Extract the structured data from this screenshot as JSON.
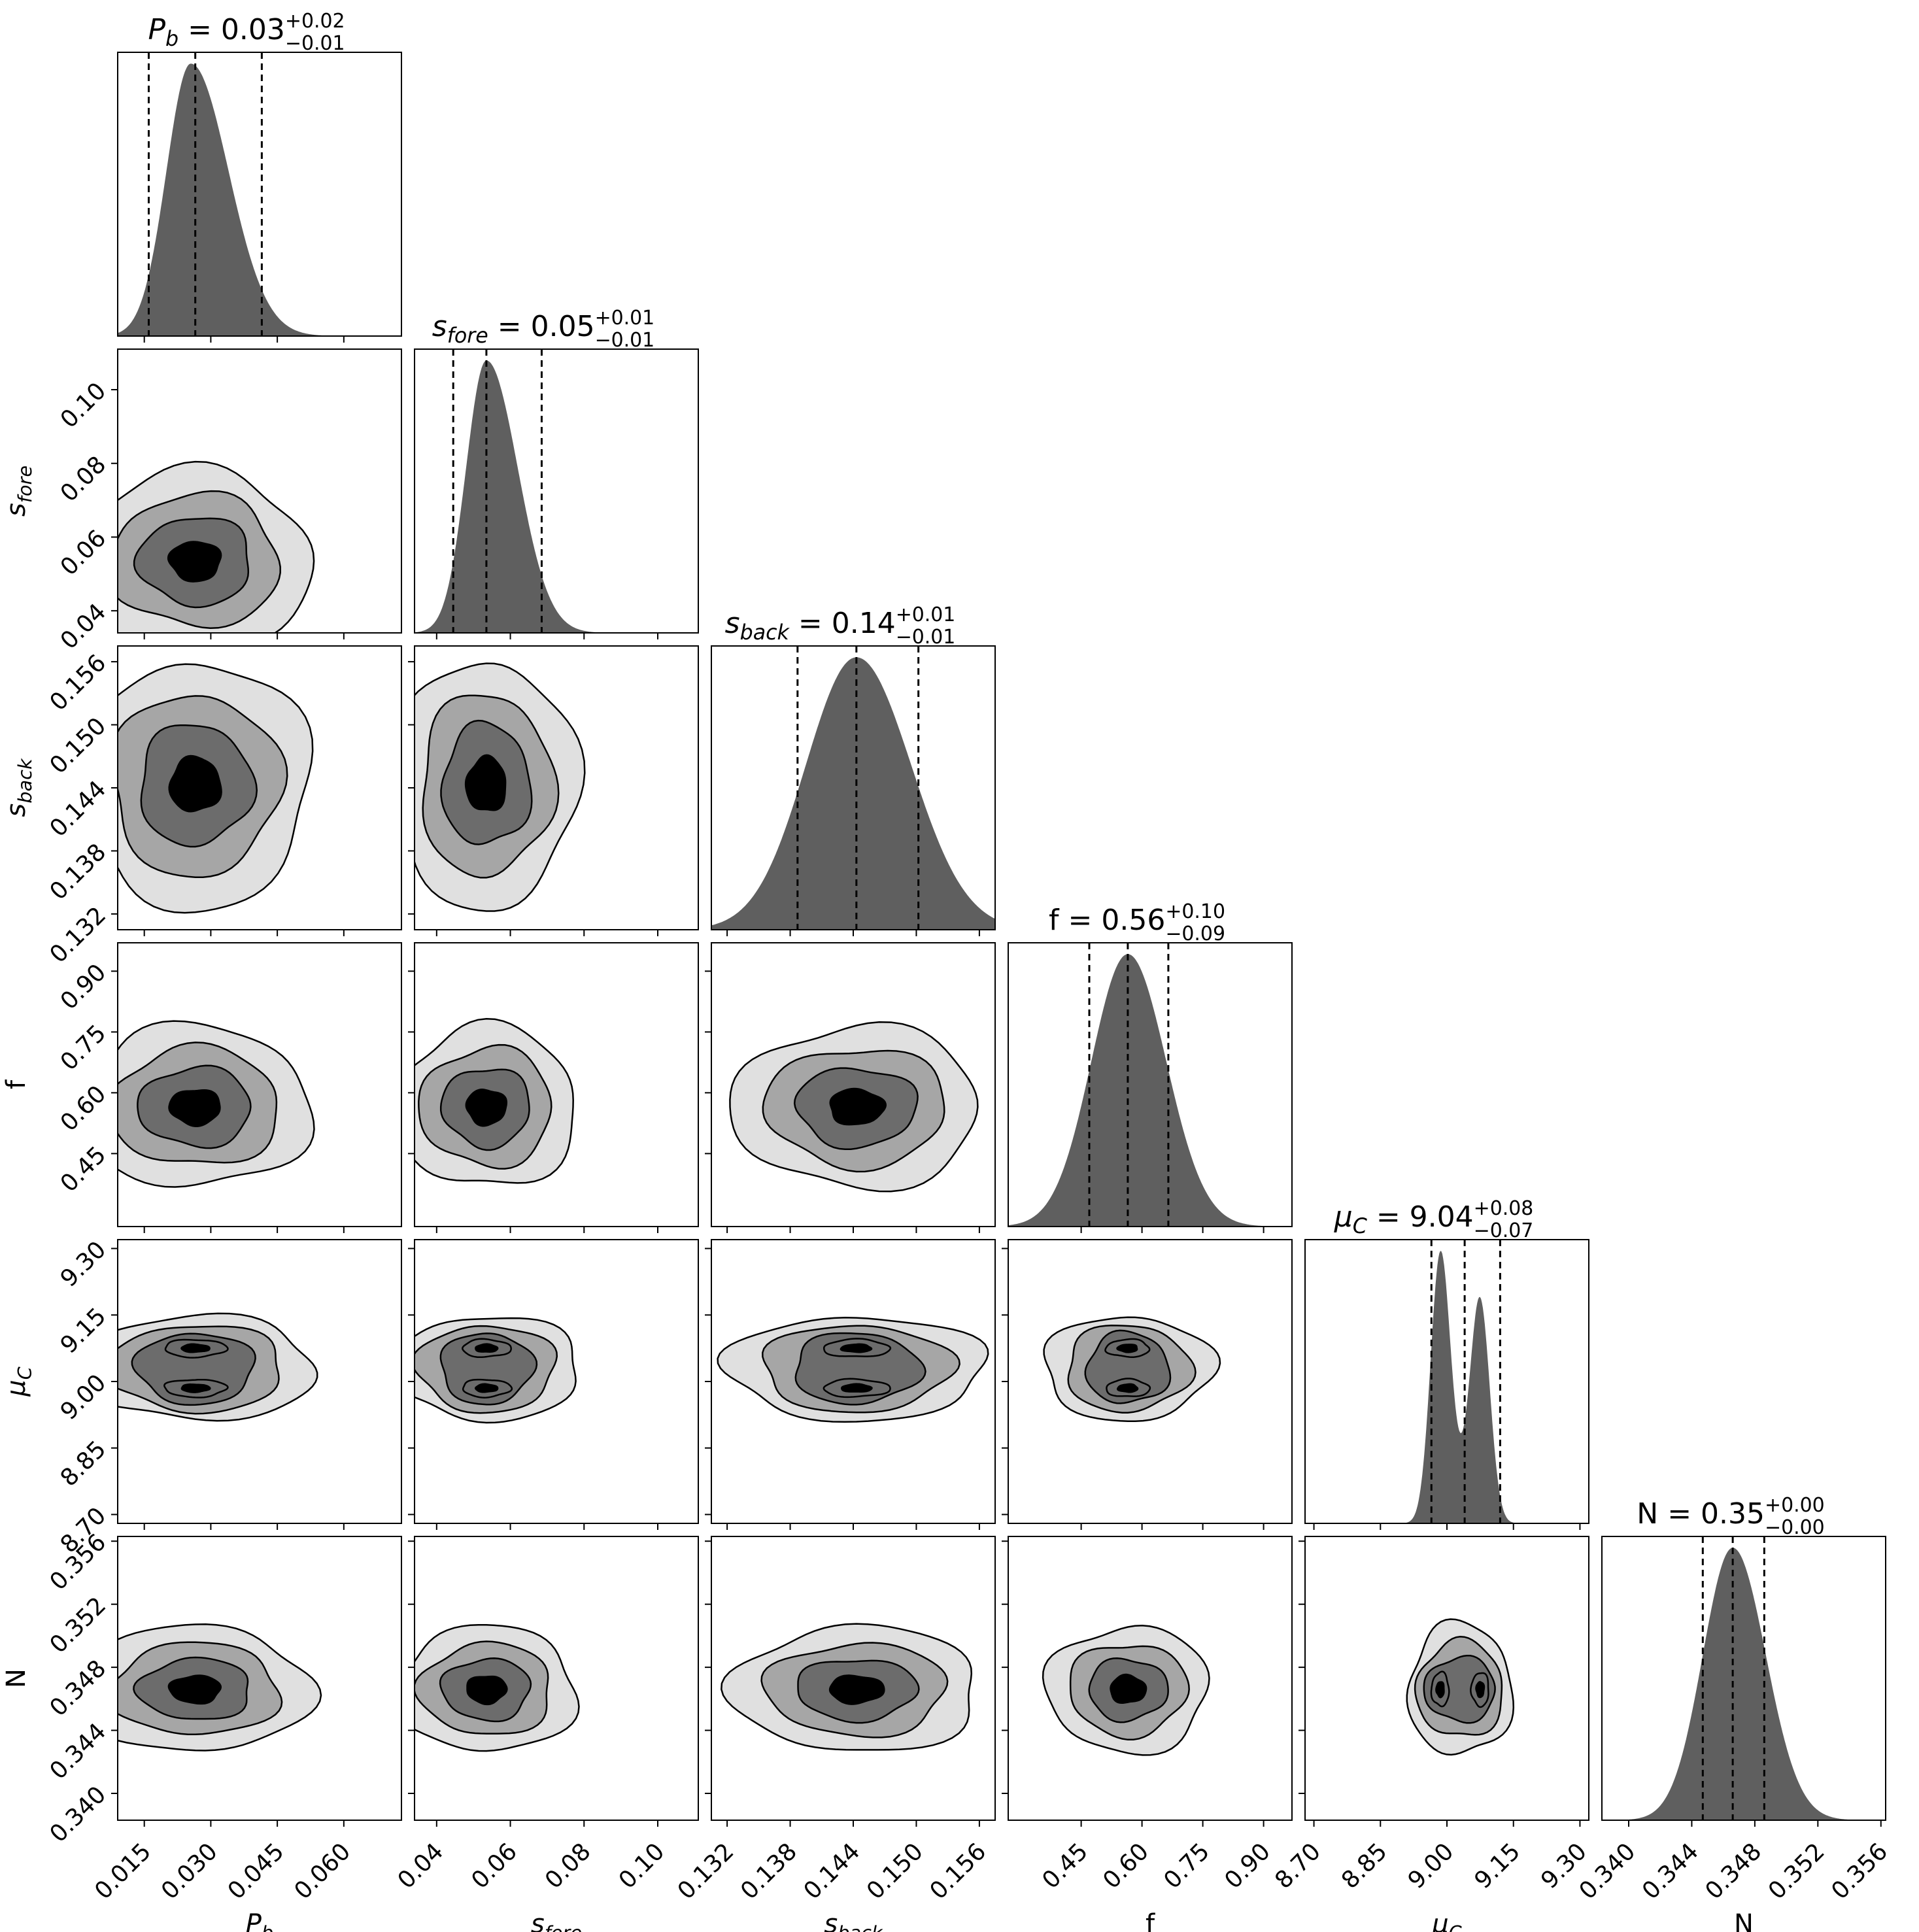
{
  "chart_data": {
    "type": "corner",
    "grid": false,
    "params": [
      {
        "id": "Pb",
        "label": "P",
        "label_sub": "b",
        "italic": true,
        "median": "0.03",
        "plus": "+0.02",
        "minus": "−0.01",
        "range": [
          0.009,
          0.073
        ],
        "ticks": [
          0.015,
          0.03,
          0.045,
          0.06
        ],
        "tick_labels": [
          "0.015",
          "0.030",
          "0.045",
          "0.060"
        ],
        "hist": {
          "shape": "skew",
          "mode": 0.0255,
          "sigma_left": 0.0055,
          "sigma_right": 0.0085
        },
        "quantiles": [
          0.016,
          0.0265,
          0.0415
        ]
      },
      {
        "id": "sfore",
        "label": "s",
        "label_sub": "fore",
        "italic": true,
        "median": "0.05",
        "plus": "+0.01",
        "minus": "−0.01",
        "range": [
          0.034,
          0.111
        ],
        "ticks": [
          0.04,
          0.06,
          0.08,
          0.1
        ],
        "tick_labels": [
          "0.04",
          "0.06",
          "0.08",
          "0.10"
        ],
        "hist": {
          "shape": "skew",
          "mode": 0.0535,
          "sigma_left": 0.0055,
          "sigma_right": 0.0085
        },
        "quantiles": [
          0.0445,
          0.0535,
          0.0685
        ]
      },
      {
        "id": "sback",
        "label": "s",
        "label_sub": "back",
        "italic": true,
        "median": "0.14",
        "plus": "+0.01",
        "minus": "−0.01",
        "range": [
          0.1305,
          0.1575
        ],
        "ticks": [
          0.132,
          0.138,
          0.144,
          0.15,
          0.156
        ],
        "tick_labels": [
          "0.132",
          "0.138",
          "0.144",
          "0.150",
          "0.156"
        ],
        "hist": {
          "shape": "skew",
          "mode": 0.1443,
          "sigma_left": 0.0048,
          "sigma_right": 0.0052
        },
        "quantiles": [
          0.1387,
          0.1443,
          0.1502
        ]
      },
      {
        "id": "f",
        "label": "f",
        "label_sub": "",
        "italic": false,
        "median": "0.56",
        "plus": "+0.10",
        "minus": "−0.09",
        "range": [
          0.27,
          0.97
        ],
        "ticks": [
          0.45,
          0.6,
          0.75,
          0.9
        ],
        "tick_labels": [
          "0.45",
          "0.60",
          "0.75",
          "0.90"
        ],
        "hist": {
          "shape": "skew",
          "mode": 0.565,
          "sigma_left": 0.09,
          "sigma_right": 0.095
        },
        "quantiles": [
          0.47,
          0.565,
          0.665
        ]
      },
      {
        "id": "muC",
        "label": "μ",
        "label_sub": "C",
        "italic": true,
        "median": "9.04",
        "plus": "+0.08",
        "minus": "−0.07",
        "range": [
          8.68,
          9.32
        ],
        "ticks": [
          8.7,
          8.85,
          9.0,
          9.15,
          9.3
        ],
        "tick_labels": [
          "8.70",
          "8.85",
          "9.00",
          "9.15",
          "9.30"
        ],
        "hist": {
          "shape": "bimodal",
          "modes": [
            8.985,
            9.075
          ],
          "sigma": 0.022,
          "weights": [
            0.95,
            0.78
          ]
        },
        "quantiles": [
          8.965,
          9.04,
          9.12
        ]
      },
      {
        "id": "N",
        "label": "N",
        "label_sub": "",
        "italic": false,
        "median": "0.35",
        "plus": "+0.00",
        "minus": "−0.00",
        "range": [
          0.3383,
          0.3563
        ],
        "ticks": [
          0.34,
          0.344,
          0.348,
          0.352,
          0.356
        ],
        "tick_labels": [
          "0.340",
          "0.344",
          "0.348",
          "0.352",
          "0.356"
        ],
        "hist": {
          "shape": "skew",
          "mode": 0.3466,
          "sigma_left": 0.0019,
          "sigma_right": 0.0021
        },
        "quantiles": [
          0.3447,
          0.3466,
          0.3486
        ]
      }
    ],
    "contours": {
      "levels": 4,
      "fills": [
        "#e0e0e0",
        "#a6a6a6",
        "#6c6c6c",
        "#000000"
      ],
      "line_color": "#000000",
      "hist_color": "#5f5f5f"
    }
  }
}
